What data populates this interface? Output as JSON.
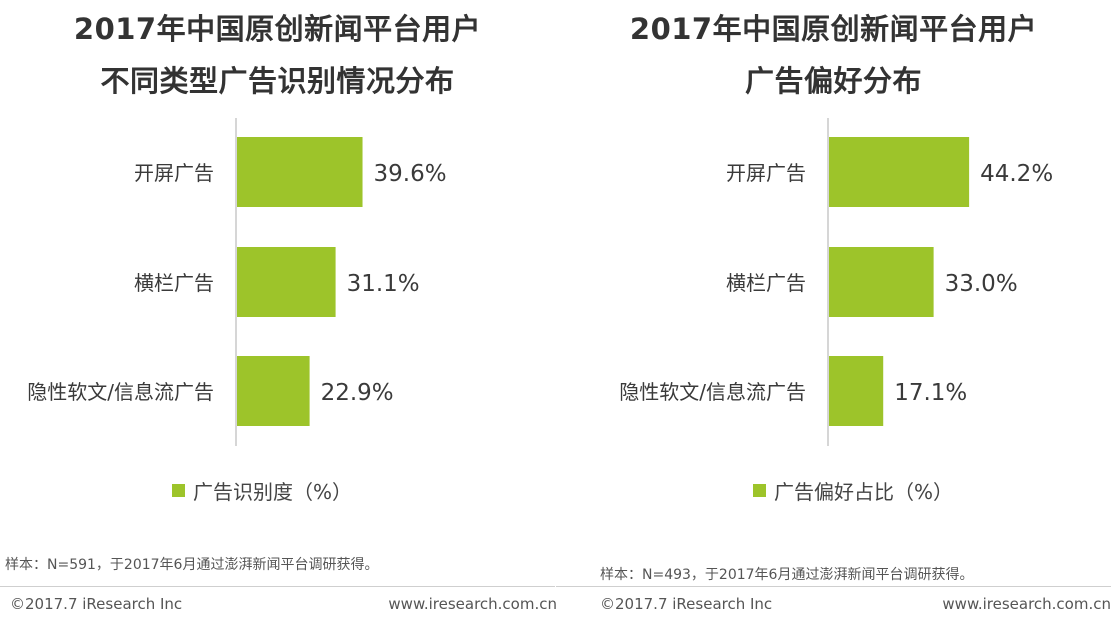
{
  "chart_data": [
    {
      "type": "bar",
      "orientation": "horizontal",
      "title": "2017年中国原创新闻平台用户不同类型广告识别情况分布",
      "title_lines": [
        "2017年中国原创新闻平台用户",
        "不同类型广告识别情况分布"
      ],
      "categories": [
        "开屏广告",
        "横栏广告",
        "隐性软文/信息流广告"
      ],
      "series": [
        {
          "name": "广告识别度（%）",
          "values": [
            39.6,
            31.1,
            22.9
          ]
        }
      ],
      "data_labels": [
        "39.6%",
        "31.1%",
        "22.9%"
      ],
      "legend": "bottom-center",
      "grid": false,
      "bar_color": "#9dc42a"
    },
    {
      "type": "bar",
      "orientation": "horizontal",
      "title": "2017年中国原创新闻平台用户广告偏好分布",
      "title_lines": [
        "2017年中国原创新闻平台用户",
        "广告偏好分布"
      ],
      "categories": [
        "开屏广告",
        "横栏广告",
        "隐性软文/信息流广告"
      ],
      "series": [
        {
          "name": "广告偏好占比（%）",
          "values": [
            44.2,
            33.0,
            17.1
          ]
        }
      ],
      "data_labels": [
        "44.2%",
        "33.0%",
        "17.1%"
      ],
      "legend": "bottom-center",
      "grid": false,
      "bar_color": "#9dc42a"
    }
  ],
  "notes": [
    "样本：N=591，于2017年6月通过澎湃新闻平台调研获得。",
    "样本：N=493，于2017年6月通过澎湃新闻平台调研获得。"
  ],
  "footer": {
    "copyright": "©2017.7 iResearch Inc",
    "url": "www.iresearch.com.cn"
  }
}
